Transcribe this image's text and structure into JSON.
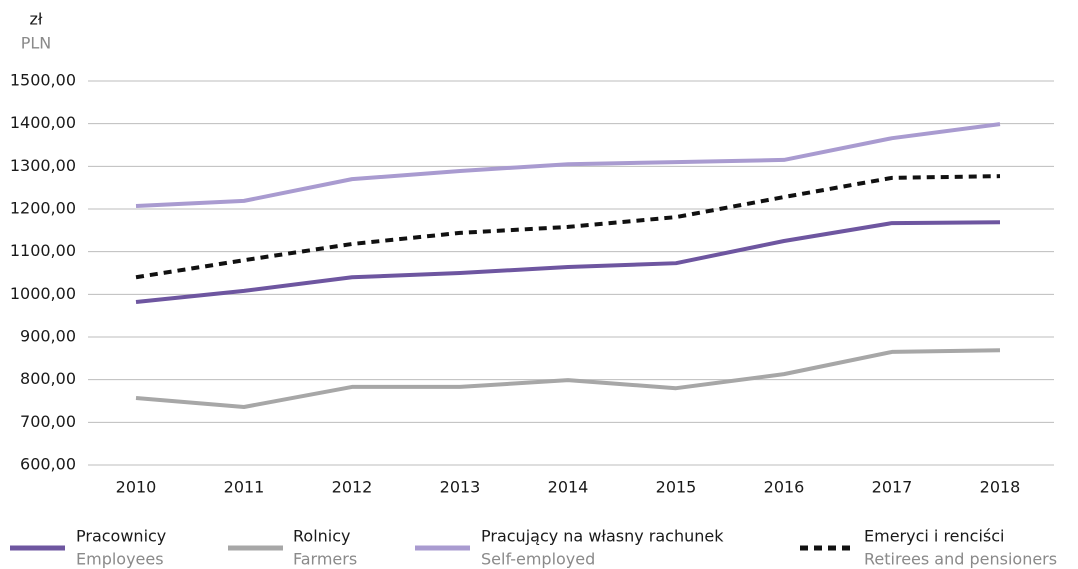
{
  "chart_data": {
    "type": "line",
    "unit_label": "zł",
    "unit_label_en": "PLN",
    "categories": [
      "2010",
      "2011",
      "2012",
      "2013",
      "2014",
      "2015",
      "2016",
      "2017",
      "2018"
    ],
    "series": [
      {
        "name": "Pracownicy",
        "name_en": "Employees",
        "color": "#6e56a0",
        "dashed": false,
        "values": [
          982,
          1008,
          1040,
          1050,
          1064,
          1073,
          1125,
          1167,
          1169
        ]
      },
      {
        "name": "Rolnicy",
        "name_en": "Farmers",
        "color": "#a7a7a7",
        "dashed": false,
        "values": [
          757,
          736,
          783,
          783,
          799,
          780,
          813,
          865,
          869
        ]
      },
      {
        "name": "Pracujący na własny rachunek",
        "name_en": "Self-employed",
        "color": "#a99bd0",
        "dashed": false,
        "values": [
          1207,
          1219,
          1270,
          1289,
          1305,
          1310,
          1315,
          1366,
          1399
        ]
      },
      {
        "name": "Emeryci i renciści",
        "name_en": "Retirees and pensioners",
        "color": "#111111",
        "dashed": true,
        "values": [
          1040,
          1080,
          1118,
          1144,
          1158,
          1181,
          1228,
          1273,
          1277
        ]
      }
    ],
    "ylim": [
      600,
      1500
    ],
    "yticks": [
      {
        "value": 600,
        "label": "600,00"
      },
      {
        "value": 700,
        "label": "700,00"
      },
      {
        "value": 800,
        "label": "800,00"
      },
      {
        "value": 900,
        "label": "900,00"
      },
      {
        "value": 1000,
        "label": "1000,00"
      },
      {
        "value": 1100,
        "label": "1100,00"
      },
      {
        "value": 1200,
        "label": "1200,00"
      },
      {
        "value": 1300,
        "label": "1300,00"
      },
      {
        "value": 1400,
        "label": "1400,00"
      },
      {
        "value": 1500,
        "label": "1500,00"
      }
    ],
    "grid": true
  }
}
